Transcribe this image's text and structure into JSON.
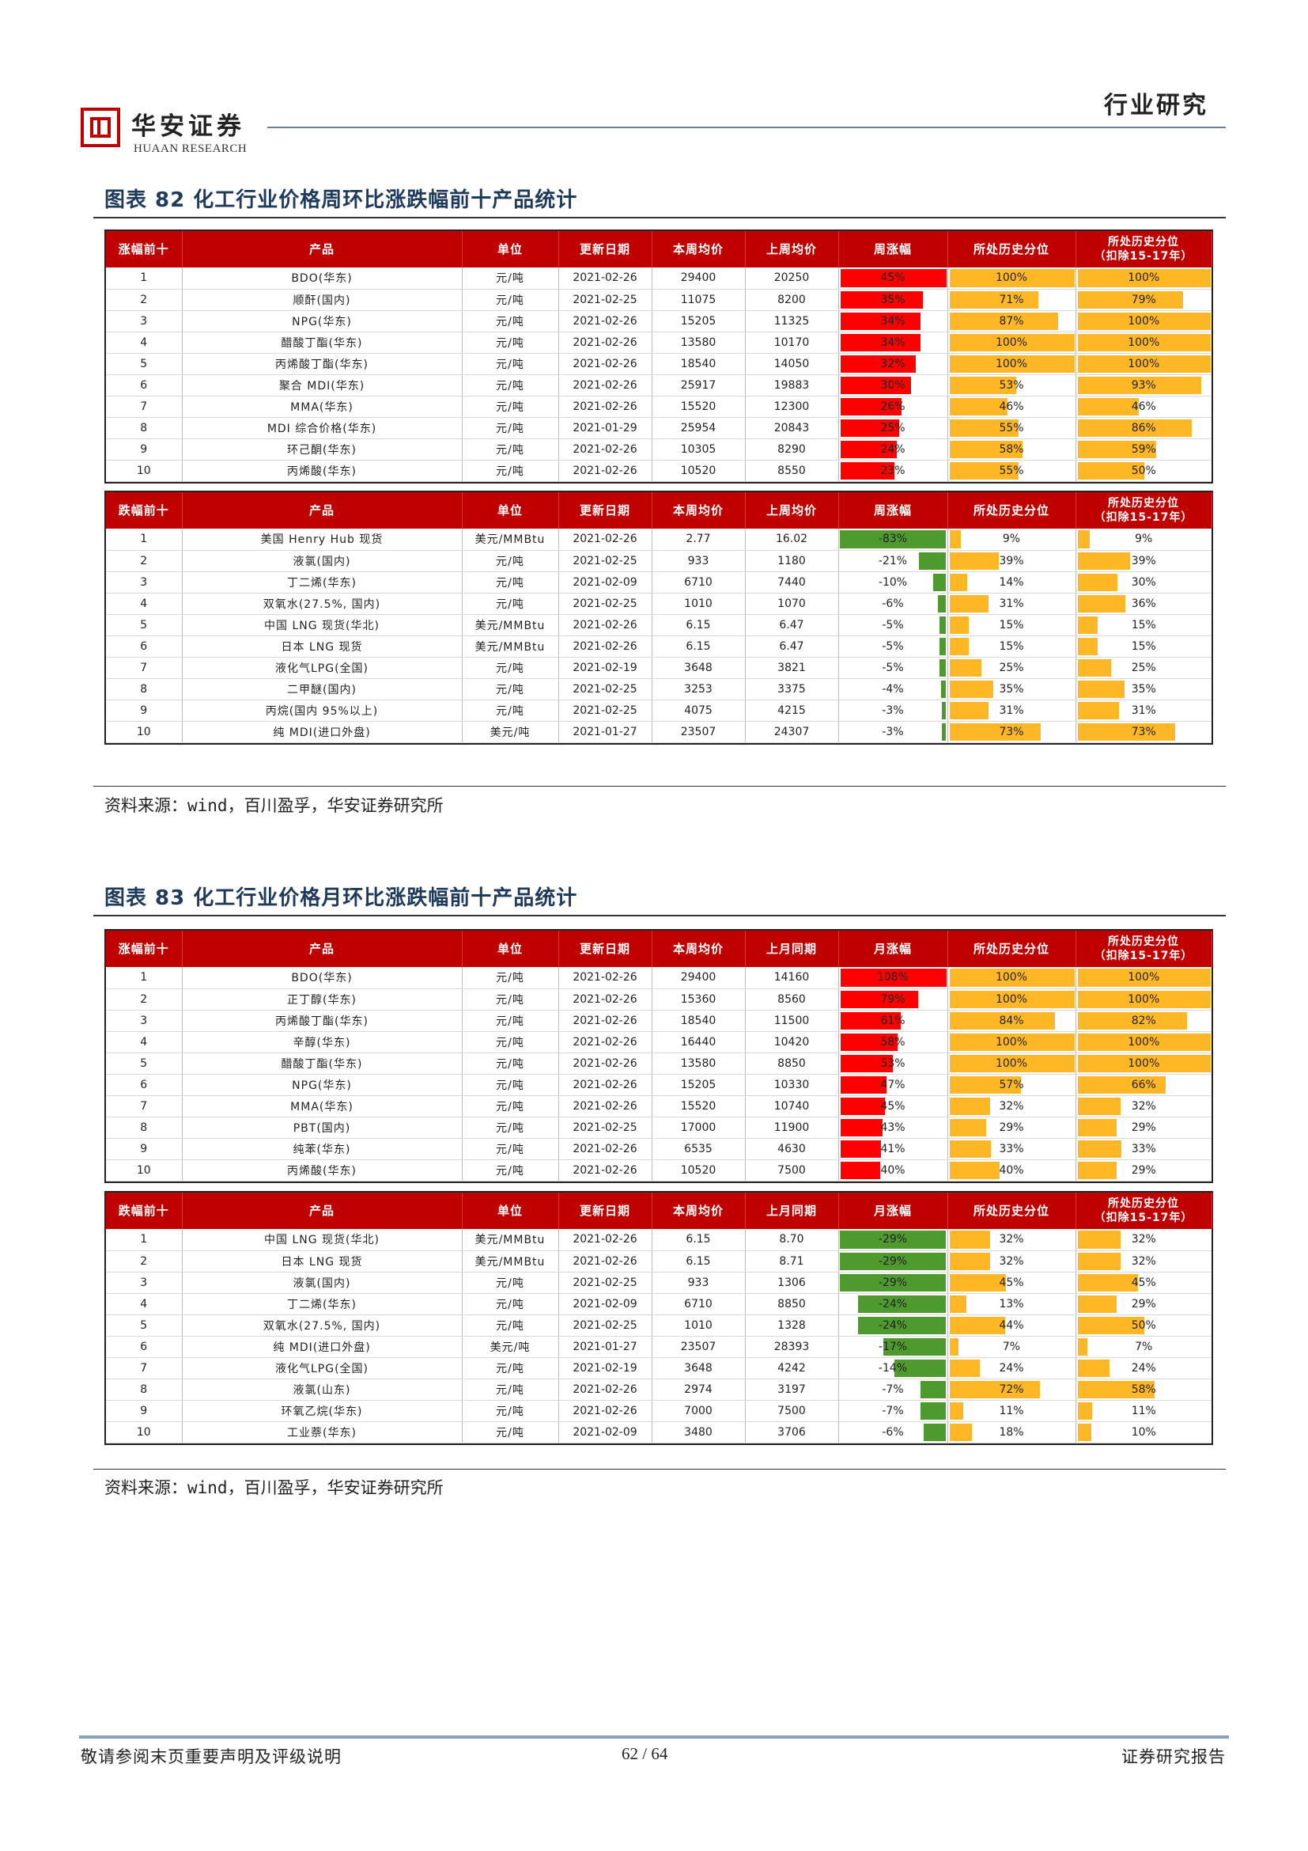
{
  "header": {
    "brand_cn": "华安证券",
    "brand_en": "HUAAN RESEARCH",
    "section": "行业研究"
  },
  "fig82": {
    "title": "图表 82  化工行业价格周环比涨跌幅前十产品统计",
    "source": "资料来源：wind，百川盈孚，华安证券研究所",
    "up_headers": [
      "涨幅前十",
      "产品",
      "单位",
      "更新日期",
      "本周均价",
      "上周均价",
      "周涨幅",
      "所处历史分位",
      "所处历史分位\n（扣除15-17年）"
    ],
    "down_headers": [
      "跌幅前十",
      "产品",
      "单位",
      "更新日期",
      "本周均价",
      "上周均价",
      "周涨幅",
      "所处历史分位",
      "所处历史分位\n（扣除15-17年）"
    ],
    "up_rows": [
      {
        "rank": "1",
        "product": "BDO(华东)",
        "unit": "元/吨",
        "date": "2021-02-26",
        "cur": "29400",
        "prev": "20250",
        "chg": "45%",
        "chg_val": 45,
        "pct": "100%",
        "pct_val": 100,
        "pct2": "100%",
        "pct2_val": 100
      },
      {
        "rank": "2",
        "product": "顺酐(国内)",
        "unit": "元/吨",
        "date": "2021-02-25",
        "cur": "11075",
        "prev": "8200",
        "chg": "35%",
        "chg_val": 35,
        "pct": "71%",
        "pct_val": 71,
        "pct2": "79%",
        "pct2_val": 79
      },
      {
        "rank": "3",
        "product": "NPG(华东)",
        "unit": "元/吨",
        "date": "2021-02-26",
        "cur": "15205",
        "prev": "11325",
        "chg": "34%",
        "chg_val": 34,
        "pct": "87%",
        "pct_val": 87,
        "pct2": "100%",
        "pct2_val": 100
      },
      {
        "rank": "4",
        "product": "醋酸丁酯(华东)",
        "unit": "元/吨",
        "date": "2021-02-26",
        "cur": "13580",
        "prev": "10170",
        "chg": "34%",
        "chg_val": 34,
        "pct": "100%",
        "pct_val": 100,
        "pct2": "100%",
        "pct2_val": 100
      },
      {
        "rank": "5",
        "product": "丙烯酸丁酯(华东)",
        "unit": "元/吨",
        "date": "2021-02-26",
        "cur": "18540",
        "prev": "14050",
        "chg": "32%",
        "chg_val": 32,
        "pct": "100%",
        "pct_val": 100,
        "pct2": "100%",
        "pct2_val": 100
      },
      {
        "rank": "6",
        "product": "聚合 MDI(华东)",
        "unit": "元/吨",
        "date": "2021-02-26",
        "cur": "25917",
        "prev": "19883",
        "chg": "30%",
        "chg_val": 30,
        "pct": "53%",
        "pct_val": 53,
        "pct2": "93%",
        "pct2_val": 93
      },
      {
        "rank": "7",
        "product": "MMA(华东)",
        "unit": "元/吨",
        "date": "2021-02-26",
        "cur": "15520",
        "prev": "12300",
        "chg": "26%",
        "chg_val": 26,
        "pct": "46%",
        "pct_val": 46,
        "pct2": "46%",
        "pct2_val": 46
      },
      {
        "rank": "8",
        "product": "MDI 综合价格(华东)",
        "unit": "元/吨",
        "date": "2021-01-29",
        "cur": "25954",
        "prev": "20843",
        "chg": "25%",
        "chg_val": 25,
        "pct": "55%",
        "pct_val": 55,
        "pct2": "86%",
        "pct2_val": 86
      },
      {
        "rank": "9",
        "product": "环己酮(华东)",
        "unit": "元/吨",
        "date": "2021-02-26",
        "cur": "10305",
        "prev": "8290",
        "chg": "24%",
        "chg_val": 24,
        "pct": "58%",
        "pct_val": 58,
        "pct2": "59%",
        "pct2_val": 59
      },
      {
        "rank": "10",
        "product": "丙烯酸(华东)",
        "unit": "元/吨",
        "date": "2021-02-26",
        "cur": "10520",
        "prev": "8550",
        "chg": "23%",
        "chg_val": 23,
        "pct": "55%",
        "pct_val": 55,
        "pct2": "50%",
        "pct2_val": 50
      }
    ],
    "down_rows": [
      {
        "rank": "1",
        "product": "美国 Henry Hub 现货",
        "unit": "美元/MMBtu",
        "date": "2021-02-26",
        "cur": "2.77",
        "prev": "16.02",
        "chg": "-83%",
        "chg_val": -83,
        "pct": "9%",
        "pct_val": 9,
        "pct2": "9%",
        "pct2_val": 9
      },
      {
        "rank": "2",
        "product": "液氯(国内)",
        "unit": "元/吨",
        "date": "2021-02-25",
        "cur": "933",
        "prev": "1180",
        "chg": "-21%",
        "chg_val": -21,
        "pct": "39%",
        "pct_val": 39,
        "pct2": "39%",
        "pct2_val": 39
      },
      {
        "rank": "3",
        "product": "丁二烯(华东)",
        "unit": "元/吨",
        "date": "2021-02-09",
        "cur": "6710",
        "prev": "7440",
        "chg": "-10%",
        "chg_val": -10,
        "pct": "14%",
        "pct_val": 14,
        "pct2": "30%",
        "pct2_val": 30
      },
      {
        "rank": "4",
        "product": "双氧水(27.5%, 国内)",
        "unit": "元/吨",
        "date": "2021-02-25",
        "cur": "1010",
        "prev": "1070",
        "chg": "-6%",
        "chg_val": -6,
        "pct": "31%",
        "pct_val": 31,
        "pct2": "36%",
        "pct2_val": 36
      },
      {
        "rank": "5",
        "product": "中国 LNG 现货(华北)",
        "unit": "美元/MMBtu",
        "date": "2021-02-26",
        "cur": "6.15",
        "prev": "6.47",
        "chg": "-5%",
        "chg_val": -5,
        "pct": "15%",
        "pct_val": 15,
        "pct2": "15%",
        "pct2_val": 15
      },
      {
        "rank": "6",
        "product": "日本 LNG 现货",
        "unit": "美元/MMBtu",
        "date": "2021-02-26",
        "cur": "6.15",
        "prev": "6.47",
        "chg": "-5%",
        "chg_val": -5,
        "pct": "15%",
        "pct_val": 15,
        "pct2": "15%",
        "pct2_val": 15
      },
      {
        "rank": "7",
        "product": "液化气LPG(全国)",
        "unit": "元/吨",
        "date": "2021-02-19",
        "cur": "3648",
        "prev": "3821",
        "chg": "-5%",
        "chg_val": -5,
        "pct": "25%",
        "pct_val": 25,
        "pct2": "25%",
        "pct2_val": 25
      },
      {
        "rank": "8",
        "product": "二甲醚(国内)",
        "unit": "元/吨",
        "date": "2021-02-25",
        "cur": "3253",
        "prev": "3375",
        "chg": "-4%",
        "chg_val": -4,
        "pct": "35%",
        "pct_val": 35,
        "pct2": "35%",
        "pct2_val": 35
      },
      {
        "rank": "9",
        "product": "丙烷(国内 95%以上)",
        "unit": "元/吨",
        "date": "2021-02-25",
        "cur": "4075",
        "prev": "4215",
        "chg": "-3%",
        "chg_val": -3,
        "pct": "31%",
        "pct_val": 31,
        "pct2": "31%",
        "pct2_val": 31
      },
      {
        "rank": "10",
        "product": "纯 MDI(进口外盘)",
        "unit": "美元/吨",
        "date": "2021-01-27",
        "cur": "23507",
        "prev": "24307",
        "chg": "-3%",
        "chg_val": -3,
        "pct": "73%",
        "pct_val": 73,
        "pct2": "73%",
        "pct2_val": 73
      }
    ]
  },
  "fig83": {
    "title": "图表 83  化工行业价格月环比涨跌幅前十产品统计",
    "source": "资料来源：wind，百川盈孚，华安证券研究所",
    "up_headers": [
      "涨幅前十",
      "产品",
      "单位",
      "更新日期",
      "本周均价",
      "上月同期",
      "月涨幅",
      "所处历史分位",
      "所处历史分位\n（扣除15-17年）"
    ],
    "down_headers": [
      "跌幅前十",
      "产品",
      "单位",
      "更新日期",
      "本周均价",
      "上月同期",
      "月涨幅",
      "所处历史分位",
      "所处历史分位\n（扣除15-17年）"
    ],
    "up_rows": [
      {
        "rank": "1",
        "product": "BDO(华东)",
        "unit": "元/吨",
        "date": "2021-02-26",
        "cur": "29400",
        "prev": "14160",
        "chg": "108%",
        "chg_val": 108,
        "pct": "100%",
        "pct_val": 100,
        "pct2": "100%",
        "pct2_val": 100
      },
      {
        "rank": "2",
        "product": "正丁醇(华东)",
        "unit": "元/吨",
        "date": "2021-02-26",
        "cur": "15360",
        "prev": "8560",
        "chg": "79%",
        "chg_val": 79,
        "pct": "100%",
        "pct_val": 100,
        "pct2": "100%",
        "pct2_val": 100
      },
      {
        "rank": "3",
        "product": "丙烯酸丁酯(华东)",
        "unit": "元/吨",
        "date": "2021-02-26",
        "cur": "18540",
        "prev": "11500",
        "chg": "61%",
        "chg_val": 61,
        "pct": "84%",
        "pct_val": 84,
        "pct2": "82%",
        "pct2_val": 82
      },
      {
        "rank": "4",
        "product": "辛醇(华东)",
        "unit": "元/吨",
        "date": "2021-02-26",
        "cur": "16440",
        "prev": "10420",
        "chg": "58%",
        "chg_val": 58,
        "pct": "100%",
        "pct_val": 100,
        "pct2": "100%",
        "pct2_val": 100
      },
      {
        "rank": "5",
        "product": "醋酸丁酯(华东)",
        "unit": "元/吨",
        "date": "2021-02-26",
        "cur": "13580",
        "prev": "8850",
        "chg": "53%",
        "chg_val": 53,
        "pct": "100%",
        "pct_val": 100,
        "pct2": "100%",
        "pct2_val": 100
      },
      {
        "rank": "6",
        "product": "NPG(华东)",
        "unit": "元/吨",
        "date": "2021-02-26",
        "cur": "15205",
        "prev": "10330",
        "chg": "47%",
        "chg_val": 47,
        "pct": "57%",
        "pct_val": 57,
        "pct2": "66%",
        "pct2_val": 66
      },
      {
        "rank": "7",
        "product": "MMA(华东)",
        "unit": "元/吨",
        "date": "2021-02-26",
        "cur": "15520",
        "prev": "10740",
        "chg": "45%",
        "chg_val": 45,
        "pct": "32%",
        "pct_val": 32,
        "pct2": "32%",
        "pct2_val": 32
      },
      {
        "rank": "8",
        "product": "PBT(国内)",
        "unit": "元/吨",
        "date": "2021-02-25",
        "cur": "17000",
        "prev": "11900",
        "chg": "43%",
        "chg_val": 43,
        "pct": "29%",
        "pct_val": 29,
        "pct2": "29%",
        "pct2_val": 29
      },
      {
        "rank": "9",
        "product": "纯苯(华东)",
        "unit": "元/吨",
        "date": "2021-02-26",
        "cur": "6535",
        "prev": "4630",
        "chg": "41%",
        "chg_val": 41,
        "pct": "33%",
        "pct_val": 33,
        "pct2": "33%",
        "pct2_val": 33
      },
      {
        "rank": "10",
        "product": "丙烯酸(华东)",
        "unit": "元/吨",
        "date": "2021-02-26",
        "cur": "10520",
        "prev": "7500",
        "chg": "40%",
        "chg_val": 40,
        "pct": "40%",
        "pct_val": 40,
        "pct2": "29%",
        "pct2_val": 29
      }
    ],
    "down_rows": [
      {
        "rank": "1",
        "product": "中国 LNG 现货(华北)",
        "unit": "美元/MMBtu",
        "date": "2021-02-26",
        "cur": "6.15",
        "prev": "8.70",
        "chg": "-29%",
        "chg_val": -29,
        "pct": "32%",
        "pct_val": 32,
        "pct2": "32%",
        "pct2_val": 32
      },
      {
        "rank": "2",
        "product": "日本 LNG 现货",
        "unit": "美元/MMBtu",
        "date": "2021-02-26",
        "cur": "6.15",
        "prev": "8.71",
        "chg": "-29%",
        "chg_val": -29,
        "pct": "32%",
        "pct_val": 32,
        "pct2": "32%",
        "pct2_val": 32
      },
      {
        "rank": "3",
        "product": "液氯(国内)",
        "unit": "元/吨",
        "date": "2021-02-25",
        "cur": "933",
        "prev": "1306",
        "chg": "-29%",
        "chg_val": -29,
        "pct": "45%",
        "pct_val": 45,
        "pct2": "45%",
        "pct2_val": 45
      },
      {
        "rank": "4",
        "product": "丁二烯(华东)",
        "unit": "元/吨",
        "date": "2021-02-09",
        "cur": "6710",
        "prev": "8850",
        "chg": "-24%",
        "chg_val": -24,
        "pct": "13%",
        "pct_val": 13,
        "pct2": "29%",
        "pct2_val": 29
      },
      {
        "rank": "5",
        "product": "双氧水(27.5%, 国内)",
        "unit": "元/吨",
        "date": "2021-02-25",
        "cur": "1010",
        "prev": "1328",
        "chg": "-24%",
        "chg_val": -24,
        "pct": "44%",
        "pct_val": 44,
        "pct2": "50%",
        "pct2_val": 50
      },
      {
        "rank": "6",
        "product": "纯 MDI(进口外盘)",
        "unit": "美元/吨",
        "date": "2021-01-27",
        "cur": "23507",
        "prev": "28393",
        "chg": "-17%",
        "chg_val": -17,
        "pct": "7%",
        "pct_val": 7,
        "pct2": "7%",
        "pct2_val": 7
      },
      {
        "rank": "7",
        "product": "液化气LPG(全国)",
        "unit": "元/吨",
        "date": "2021-02-19",
        "cur": "3648",
        "prev": "4242",
        "chg": "-14%",
        "chg_val": -14,
        "pct": "24%",
        "pct_val": 24,
        "pct2": "24%",
        "pct2_val": 24
      },
      {
        "rank": "8",
        "product": "液氯(山东)",
        "unit": "元/吨",
        "date": "2021-02-26",
        "cur": "2974",
        "prev": "3197",
        "chg": "-7%",
        "chg_val": -7,
        "pct": "72%",
        "pct_val": 72,
        "pct2": "58%",
        "pct2_val": 58
      },
      {
        "rank": "9",
        "product": "环氧乙烷(华东)",
        "unit": "元/吨",
        "date": "2021-02-26",
        "cur": "7000",
        "prev": "7500",
        "chg": "-7%",
        "chg_val": -7,
        "pct": "11%",
        "pct_val": 11,
        "pct2": "11%",
        "pct2_val": 11
      },
      {
        "rank": "10",
        "product": "工业萘(华东)",
        "unit": "元/吨",
        "date": "2021-02-09",
        "cur": "3480",
        "prev": "3706",
        "chg": "-6%",
        "chg_val": -6,
        "pct": "18%",
        "pct_val": 18,
        "pct2": "10%",
        "pct2_val": 10
      }
    ]
  },
  "footer": {
    "left": "敬请参阅末页重要声明及评级说明",
    "page": "62 / 64",
    "right": "证券研究报告"
  },
  "colors": {
    "header_red": "#c00000",
    "bar_up": "#ff0000",
    "bar_down": "#4f9a2f",
    "bar_pct": "#ffb726"
  }
}
